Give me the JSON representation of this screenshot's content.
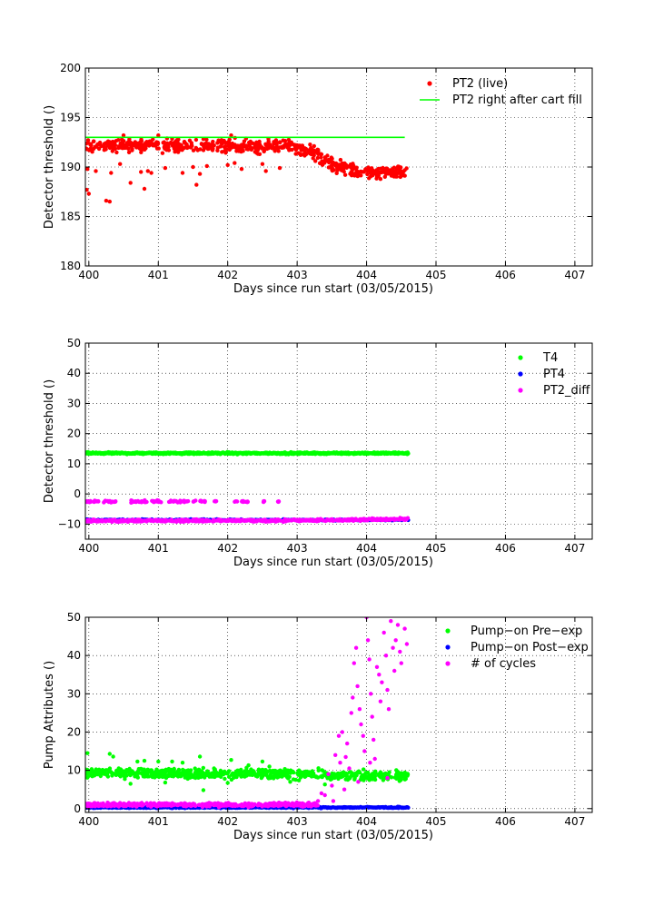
{
  "chart_data": [
    {
      "type": "scatter",
      "ylabel": "Detector threshold ()",
      "xlabel": "Days since run start (03/05/2015)",
      "xlim": [
        399.95,
        407.25
      ],
      "ylim": [
        180,
        200
      ],
      "xticks": [
        "400",
        "401",
        "402",
        "403",
        "404",
        "405",
        "406",
        "407"
      ],
      "yticks": [
        "180",
        "185",
        "190",
        "195",
        "200"
      ],
      "grid": true,
      "legend_position": "top-right",
      "legend": [
        {
          "label": "PT2 (live)",
          "marker": "dot",
          "color": "#ff0000"
        },
        {
          "label": "PT2 right after cart fill",
          "marker": "line",
          "color": "#00ff00"
        }
      ],
      "series": [
        {
          "name": "PT2 (live)",
          "color": "#ff0000",
          "kind": "points",
          "x_range": [
            399.95,
            404.6
          ],
          "profile": [
            [
              399.95,
              192.2
            ],
            [
              402.9,
              192.1
            ],
            [
              403.2,
              191.6
            ],
            [
              403.5,
              190.3
            ],
            [
              403.8,
              189.6
            ],
            [
              404.6,
              189.4
            ]
          ],
          "spread": 0.55,
          "count": 640,
          "outliers": [
            [
              399.97,
              187.7
            ],
            [
              400.0,
              187.3
            ],
            [
              399.98,
              189.8
            ],
            [
              400.1,
              189.6
            ],
            [
              400.25,
              186.6
            ],
            [
              400.3,
              186.5
            ],
            [
              400.32,
              189.4
            ],
            [
              400.45,
              190.3
            ],
            [
              400.6,
              188.4
            ],
            [
              400.75,
              189.5
            ],
            [
              400.8,
              187.8
            ],
            [
              400.85,
              189.6
            ],
            [
              400.9,
              189.4
            ],
            [
              401.1,
              189.9
            ],
            [
              401.35,
              189.4
            ],
            [
              401.5,
              190.0
            ],
            [
              401.55,
              188.2
            ],
            [
              401.6,
              189.3
            ],
            [
              401.7,
              190.1
            ],
            [
              402.0,
              190.2
            ],
            [
              402.1,
              190.4
            ],
            [
              402.2,
              189.8
            ],
            [
              402.5,
              190.3
            ],
            [
              402.55,
              189.6
            ],
            [
              402.75,
              189.9
            ],
            [
              400.5,
              193.2
            ],
            [
              401.0,
              193.2
            ],
            [
              402.05,
              193.2
            ]
          ]
        },
        {
          "name": "PT2 right after cart fill",
          "color": "#00ff00",
          "kind": "line",
          "x": [
            399.95,
            404.55
          ],
          "y": [
            193.0,
            193.0
          ]
        }
      ]
    },
    {
      "type": "scatter",
      "ylabel": "Detector threshold ()",
      "xlabel": "Days since run start (03/05/2015)",
      "xlim": [
        399.95,
        407.25
      ],
      "ylim": [
        -15,
        50
      ],
      "xticks": [
        "400",
        "401",
        "402",
        "403",
        "404",
        "405",
        "406",
        "407"
      ],
      "yticks": [
        "−10",
        "0",
        "10",
        "20",
        "30",
        "40",
        "50"
      ],
      "grid": true,
      "legend_position": "top-right",
      "legend": [
        {
          "label": "T4",
          "marker": "dot",
          "color": "#00ff00"
        },
        {
          "label": "PT4",
          "marker": "dot",
          "color": "#0000ff"
        },
        {
          "label": "PT2_diff",
          "marker": "dot",
          "color": "#ff00ff"
        }
      ],
      "series": [
        {
          "name": "T4",
          "color": "#00ff00",
          "kind": "band",
          "x_range": [
            399.95,
            404.6
          ],
          "y": 13.5,
          "spread": 0.25,
          "count": 700
        },
        {
          "name": "PT4",
          "color": "#0000ff",
          "kind": "band",
          "x_range": [
            399.95,
            404.6
          ],
          "y": -8.6,
          "spread": 0.2,
          "count": 200
        },
        {
          "name": "PT2_diff",
          "color": "#ff00ff",
          "kind": "points",
          "x_range": [
            399.95,
            404.6
          ],
          "profile": [
            [
              399.95,
              -8.9
            ],
            [
              403.0,
              -8.8
            ],
            [
              404.6,
              -8.3
            ]
          ],
          "spread": 0.3,
          "count": 600,
          "clusters_x": [
            399.95,
            400.0,
            400.05,
            400.1,
            400.2,
            400.25,
            400.3,
            400.35,
            400.6,
            400.65,
            400.7,
            400.75,
            400.8,
            400.9,
            400.95,
            401.0,
            401.15,
            401.2,
            401.25,
            401.3,
            401.35,
            401.4,
            401.5,
            401.6,
            401.65,
            401.8,
            402.1,
            402.2,
            402.25,
            402.5,
            402.7
          ],
          "clusters_y": -2.5
        }
      ]
    },
    {
      "type": "scatter",
      "ylabel": "Pump Attributes ()",
      "xlabel": "Days since run start (03/05/2015)",
      "xlim": [
        399.95,
        407.25
      ],
      "ylim": [
        -1,
        50
      ],
      "xticks": [
        "400",
        "401",
        "402",
        "403",
        "404",
        "405",
        "406",
        "407"
      ],
      "yticks": [
        "0",
        "10",
        "20",
        "30",
        "40",
        "50"
      ],
      "grid": true,
      "legend_position": "top-right",
      "legend": [
        {
          "label": "Pump−on Pre−exp",
          "marker": "dot",
          "color": "#00ff00"
        },
        {
          "label": "Pump−on Post−exp",
          "marker": "dot",
          "color": "#0000ff"
        },
        {
          "label": "# of cycles",
          "marker": "dot",
          "color": "#ff00ff"
        }
      ],
      "series": [
        {
          "name": "Pump−on Pre−exp",
          "color": "#00ff00",
          "kind": "points",
          "x_range": [
            399.95,
            404.6
          ],
          "profile": [
            [
              399.95,
              9.3
            ],
            [
              403.0,
              9.0
            ],
            [
              404.6,
              8.5
            ]
          ],
          "spread": 1.1,
          "count": 700,
          "outliers": [
            [
              399.98,
              14.5
            ],
            [
              400.3,
              14.3
            ],
            [
              400.35,
              13.6
            ],
            [
              400.7,
              12.3
            ],
            [
              400.8,
              12.5
            ],
            [
              401.0,
              12.3
            ],
            [
              401.2,
              12.3
            ],
            [
              401.35,
              12.0
            ],
            [
              401.6,
              13.6
            ],
            [
              402.05,
              12.7
            ],
            [
              402.3,
              11.3
            ],
            [
              402.5,
              12.3
            ],
            [
              402.6,
              11.0
            ],
            [
              400.6,
              6.5
            ],
            [
              401.1,
              6.8
            ],
            [
              401.65,
              4.8
            ],
            [
              402.0,
              6.7
            ],
            [
              402.9,
              7.0
            ],
            [
              403.4,
              6.3
            ]
          ]
        },
        {
          "name": "Pump−on Post−exp",
          "color": "#0000ff",
          "kind": "band",
          "x_range": [
            399.95,
            404.6
          ],
          "y": 0.3,
          "spread": 0.15,
          "count": 400
        },
        {
          "name": "# of cycles",
          "color": "#ff00ff",
          "kind": "points",
          "x_range": [
            399.95,
            403.3
          ],
          "profile": [
            [
              399.95,
              1.0
            ],
            [
              403.3,
              1.0
            ]
          ],
          "spread": 0.4,
          "count": 500,
          "extra_points": [
            [
              403.3,
              2.0
            ],
            [
              403.35,
              4.0
            ],
            [
              403.4,
              3.5
            ],
            [
              403.45,
              9.0
            ],
            [
              403.5,
              6.0
            ],
            [
              403.55,
              14.0
            ],
            [
              403.6,
              19.0
            ],
            [
              403.62,
              12.0
            ],
            [
              403.65,
              20.0
            ],
            [
              403.7,
              13.5
            ],
            [
              403.72,
              17.0
            ],
            [
              403.75,
              10.5
            ],
            [
              403.78,
              25.0
            ],
            [
              403.8,
              29.0
            ],
            [
              403.82,
              38.0
            ],
            [
              403.85,
              42.0
            ],
            [
              403.87,
              32.0
            ],
            [
              403.9,
              26.0
            ],
            [
              403.92,
              22.0
            ],
            [
              403.95,
              19.0
            ],
            [
              403.97,
              15.0
            ],
            [
              404.0,
              50.0
            ],
            [
              404.02,
              44.0
            ],
            [
              404.04,
              39.0
            ],
            [
              404.06,
              30.0
            ],
            [
              404.08,
              24.0
            ],
            [
              404.1,
              18.0
            ],
            [
              404.12,
              13.0
            ],
            [
              404.15,
              37.0
            ],
            [
              404.18,
              35.0
            ],
            [
              404.2,
              28.0
            ],
            [
              404.22,
              33.0
            ],
            [
              404.25,
              46.0
            ],
            [
              404.28,
              40.0
            ],
            [
              404.3,
              31.0
            ],
            [
              404.32,
              26.0
            ],
            [
              404.35,
              49.0
            ],
            [
              404.38,
              42.0
            ],
            [
              404.4,
              36.0
            ],
            [
              404.42,
              44.0
            ],
            [
              404.45,
              48.0
            ],
            [
              404.48,
              41.0
            ],
            [
              404.5,
              38.0
            ],
            [
              404.55,
              47.0
            ],
            [
              404.58,
              43.0
            ],
            [
              404.05,
              12.0
            ],
            [
              403.88,
              7.0
            ],
            [
              403.68,
              5.0
            ],
            [
              403.52,
              2.0
            ],
            [
              404.3,
              8.0
            ]
          ]
        }
      ]
    }
  ]
}
